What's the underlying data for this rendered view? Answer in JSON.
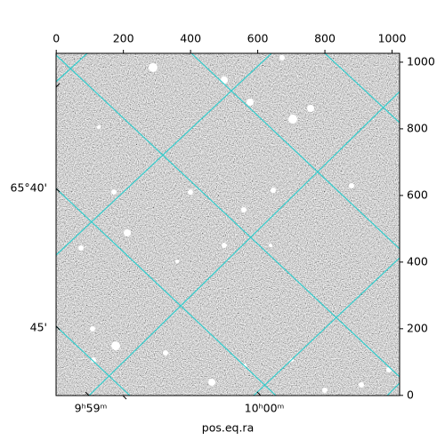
{
  "chart_data": {
    "type": "image",
    "xlabel": "pos.eq.ra",
    "xlim": [
      -0.5,
      1022.5
    ],
    "ylim": [
      -0.5,
      1026.5
    ],
    "xticks": [
      0,
      200,
      400,
      600,
      800,
      1000
    ],
    "yticks": [
      0,
      200,
      400,
      600,
      800,
      1000
    ],
    "dec_tick_labels": [
      "65°40'",
      "45'"
    ],
    "ra_tick_labels": [
      "9ʰ59ᵐ",
      "10ʰ00ᵐ"
    ],
    "grid_color": "#33cccc"
  }
}
